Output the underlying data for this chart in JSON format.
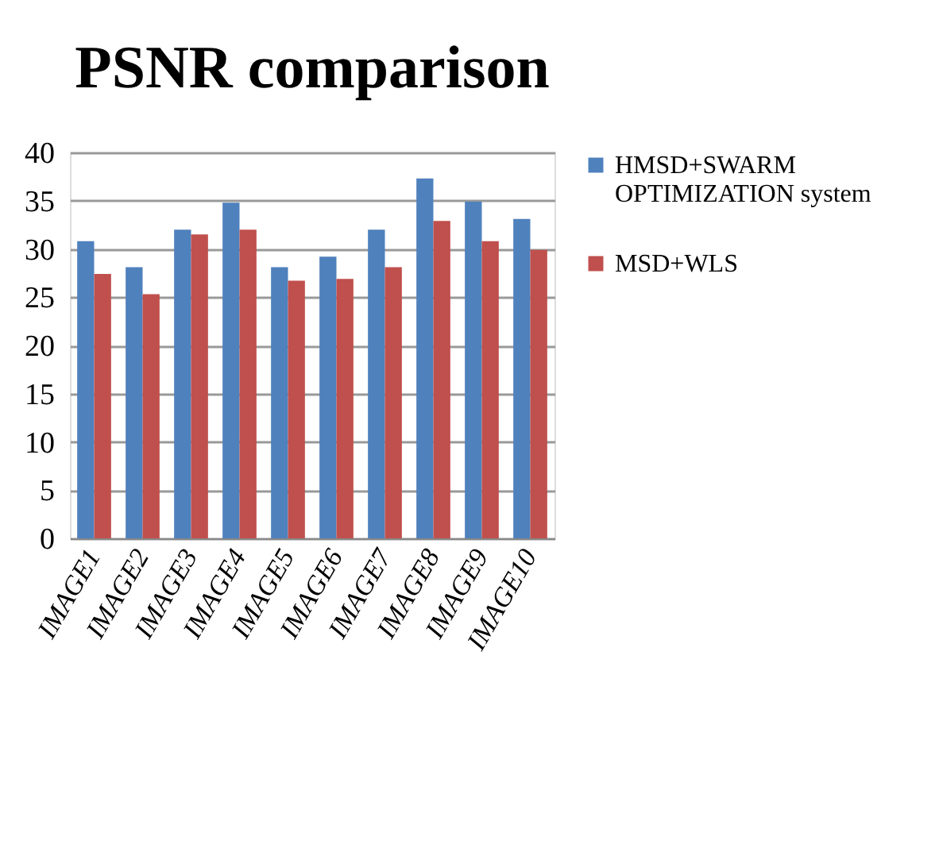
{
  "chart_data": {
    "type": "bar",
    "title": "PSNR comparison",
    "categories": [
      "IMAGE1",
      "IMAGE2",
      "IMAGE3",
      "IMAGE4",
      "IMAGE5",
      "IMAGE6",
      "IMAGE7",
      "IMAGE8",
      "IMAGE9",
      "IMAGE10"
    ],
    "series": [
      {
        "name": "HMSD+SWARM OPTIMIZATION system",
        "color": "#4f81bd",
        "values": [
          30.8,
          28.1,
          32.0,
          34.8,
          28.1,
          29.2,
          32.0,
          37.3,
          34.9,
          33.1
        ]
      },
      {
        "name": "MSD+WLS",
        "color": "#c0504d",
        "values": [
          27.4,
          25.3,
          31.5,
          32.0,
          26.7,
          26.9,
          28.1,
          32.9,
          30.8,
          29.9
        ]
      }
    ],
    "ylim": [
      0,
      40
    ],
    "yticks": [
      0,
      5,
      10,
      15,
      20,
      25,
      30,
      35,
      40
    ],
    "grid": "y",
    "legend": "right"
  }
}
